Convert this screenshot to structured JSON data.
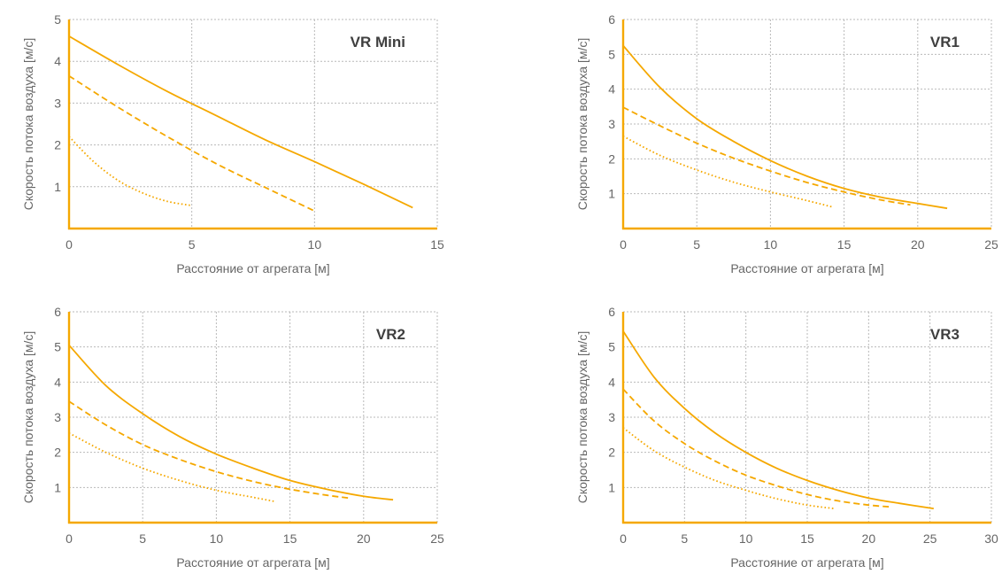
{
  "colors": {
    "curve": "#F5A800",
    "axis": "#F5A800",
    "grid": "#B9B9B9",
    "text": "#666666",
    "title": "#3F3F3F"
  },
  "chart_data": [
    {
      "type": "line",
      "title": "VR Mini",
      "xlabel": "Расстояние от агрегата [м]",
      "ylabel": "Скорость потока воздуха [м/с]",
      "xlim": [
        0,
        15
      ],
      "ylim": [
        0,
        5
      ],
      "xticks": [
        0,
        5,
        10,
        15
      ],
      "yticks": [
        1,
        2,
        3,
        4,
        5
      ],
      "grid": true,
      "series": [
        {
          "style": "solid",
          "x": [
            0,
            2,
            4,
            6,
            8,
            10,
            12,
            14
          ],
          "y": [
            4.6,
            3.92,
            3.28,
            2.7,
            2.12,
            1.6,
            1.06,
            0.5
          ]
        },
        {
          "style": "dashed",
          "x": [
            0,
            2,
            4,
            6,
            8,
            10
          ],
          "y": [
            3.65,
            2.9,
            2.2,
            1.55,
            0.98,
            0.42
          ]
        },
        {
          "style": "dotted",
          "x": [
            0,
            1,
            2,
            3,
            4,
            5
          ],
          "y": [
            2.2,
            1.6,
            1.15,
            0.85,
            0.65,
            0.55
          ]
        }
      ]
    },
    {
      "type": "line",
      "title": "VR1",
      "xlabel": "Расстояние от агрегата [м]",
      "ylabel": "Скорость потока воздуха [м/с]",
      "xlim": [
        0,
        25
      ],
      "ylim": [
        0,
        6
      ],
      "xticks": [
        0,
        5,
        10,
        15,
        20,
        25
      ],
      "yticks": [
        1,
        2,
        3,
        4,
        5,
        6
      ],
      "grid": true,
      "series": [
        {
          "style": "solid",
          "x": [
            0,
            2.5,
            5,
            7.5,
            10,
            12.5,
            15,
            17.5,
            20,
            22
          ],
          "y": [
            5.25,
            4.05,
            3.15,
            2.5,
            1.95,
            1.5,
            1.15,
            0.9,
            0.72,
            0.58
          ]
        },
        {
          "style": "dashed",
          "x": [
            0,
            2.5,
            5,
            7.5,
            10,
            12.5,
            15,
            17.5,
            19.5
          ],
          "y": [
            3.48,
            2.95,
            2.45,
            2.02,
            1.65,
            1.32,
            1.05,
            0.82,
            0.68
          ]
        },
        {
          "style": "dotted",
          "x": [
            0,
            2.5,
            5,
            7.5,
            10,
            12.5,
            14.2
          ],
          "y": [
            2.65,
            2.1,
            1.68,
            1.33,
            1.05,
            0.8,
            0.62
          ]
        }
      ]
    },
    {
      "type": "line",
      "title": "VR2",
      "xlabel": "Расстояние от агрегата [м]",
      "ylabel": "Скорость потока воздуха [м/с]",
      "xlim": [
        0,
        25
      ],
      "ylim": [
        0,
        6
      ],
      "xticks": [
        0,
        5,
        10,
        15,
        20,
        25
      ],
      "yticks": [
        1,
        2,
        3,
        4,
        5,
        6
      ],
      "grid": true,
      "series": [
        {
          "style": "solid",
          "x": [
            0,
            2.5,
            5,
            7.5,
            10,
            12.5,
            15,
            17.5,
            20,
            22
          ],
          "y": [
            5.05,
            3.9,
            3.1,
            2.45,
            1.95,
            1.55,
            1.2,
            0.95,
            0.75,
            0.65
          ]
        },
        {
          "style": "dashed",
          "x": [
            0,
            2.5,
            5,
            7.5,
            10,
            12.5,
            15,
            17.5,
            19
          ],
          "y": [
            3.45,
            2.78,
            2.22,
            1.8,
            1.45,
            1.17,
            0.95,
            0.78,
            0.7
          ]
        },
        {
          "style": "dotted",
          "x": [
            0,
            2.5,
            5,
            7.5,
            10,
            12.5,
            14
          ],
          "y": [
            2.55,
            2.0,
            1.55,
            1.2,
            0.92,
            0.72,
            0.6
          ]
        }
      ]
    },
    {
      "type": "line",
      "title": "VR3",
      "xlabel": "Расстояние от агрегата [м]",
      "ylabel": "Скорость потока воздуха [м/с]",
      "xlim": [
        0,
        30
      ],
      "ylim": [
        0,
        6
      ],
      "xticks": [
        0,
        5,
        10,
        15,
        20,
        25,
        30
      ],
      "yticks": [
        1,
        2,
        3,
        4,
        5,
        6
      ],
      "grid": true,
      "series": [
        {
          "style": "solid",
          "x": [
            0,
            2.5,
            5,
            7.5,
            10,
            12.5,
            15,
            17.5,
            20,
            22.5,
            25.3
          ],
          "y": [
            5.45,
            4.15,
            3.25,
            2.55,
            2.0,
            1.55,
            1.2,
            0.92,
            0.7,
            0.55,
            0.4
          ]
        },
        {
          "style": "dashed",
          "x": [
            0,
            2.5,
            5,
            7.5,
            10,
            12.5,
            15,
            17.5,
            20,
            21.7
          ],
          "y": [
            3.8,
            2.9,
            2.25,
            1.75,
            1.35,
            1.05,
            0.8,
            0.62,
            0.5,
            0.45
          ]
        },
        {
          "style": "dotted",
          "x": [
            0,
            2.5,
            5,
            7.5,
            10,
            12.5,
            15,
            17.2
          ],
          "y": [
            2.7,
            2.05,
            1.58,
            1.2,
            0.92,
            0.68,
            0.5,
            0.4
          ]
        }
      ]
    }
  ]
}
